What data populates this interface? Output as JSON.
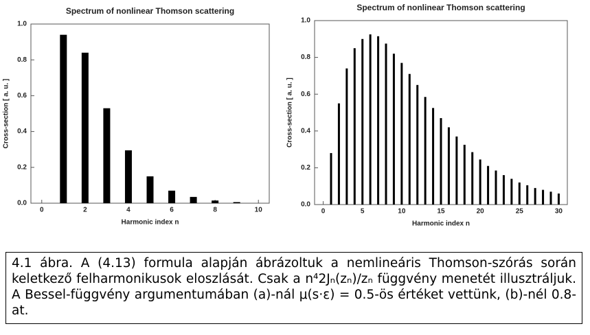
{
  "chart_data": [
    {
      "type": "bar",
      "title": "Spectrum of nonlinear Thomson scattering",
      "x_label": "Harmonic index  n",
      "y_label": "Cross-section [ a. u. ]",
      "x": [
        1,
        2,
        3,
        4,
        5,
        6,
        7,
        8,
        9
      ],
      "values": [
        0.94,
        0.84,
        0.53,
        0.295,
        0.15,
        0.07,
        0.035,
        0.015,
        0.006
      ],
      "color": "#000000",
      "xlim": [
        -0.5,
        10.5
      ],
      "xticks": [
        0,
        2,
        4,
        6,
        8,
        10
      ],
      "ylim": [
        0,
        1
      ],
      "yticks": [
        {
          "value": 0,
          "label": "0.0"
        },
        0.2,
        0.4,
        0.6,
        0.8,
        {
          "value": 1,
          "label": "1.0"
        }
      ]
    },
    {
      "type": "bar",
      "title": "Spectrum of nonlinear Thomson scattering",
      "x_label": "Harmonic index  n",
      "y_label": "Cross-section [ a. u. ]",
      "x": [
        1,
        2,
        3,
        4,
        5,
        6,
        7,
        8,
        9,
        10,
        11,
        12,
        13,
        14,
        15,
        16,
        17,
        18,
        19,
        20,
        21,
        22,
        23,
        24,
        25,
        26,
        27,
        28,
        29,
        30
      ],
      "values": [
        0.28,
        0.55,
        0.74,
        0.85,
        0.9,
        0.925,
        0.915,
        0.875,
        0.82,
        0.77,
        0.71,
        0.65,
        0.585,
        0.525,
        0.47,
        0.42,
        0.37,
        0.325,
        0.285,
        0.245,
        0.21,
        0.185,
        0.16,
        0.14,
        0.12,
        0.105,
        0.09,
        0.08,
        0.07,
        0.06
      ],
      "color": "#000000",
      "xlim": [
        -1.1,
        31.1
      ],
      "xticks": [
        0,
        5,
        10,
        15,
        20,
        25,
        30
      ],
      "ylim": [
        0,
        1
      ],
      "yticks": [
        {
          "value": 0,
          "label": "0.0"
        },
        0.2,
        0.4,
        0.6,
        0.8,
        {
          "value": 1,
          "label": "1.0"
        }
      ]
    }
  ],
  "caption": "4.1 ábra. A (4.13) formula alapján ábrázoltuk a nemlineáris Thomson-szórás során keletkező felharmonikusok eloszlását. Csak a n⁴2Jₙ(zₙ)/zₙ függvény menetét illusztráljuk. A Bessel-függvény argumentumában (a)-nál μ(s·ε) = 0.5-ös értéket vettünk, (b)-nél 0.8-at."
}
